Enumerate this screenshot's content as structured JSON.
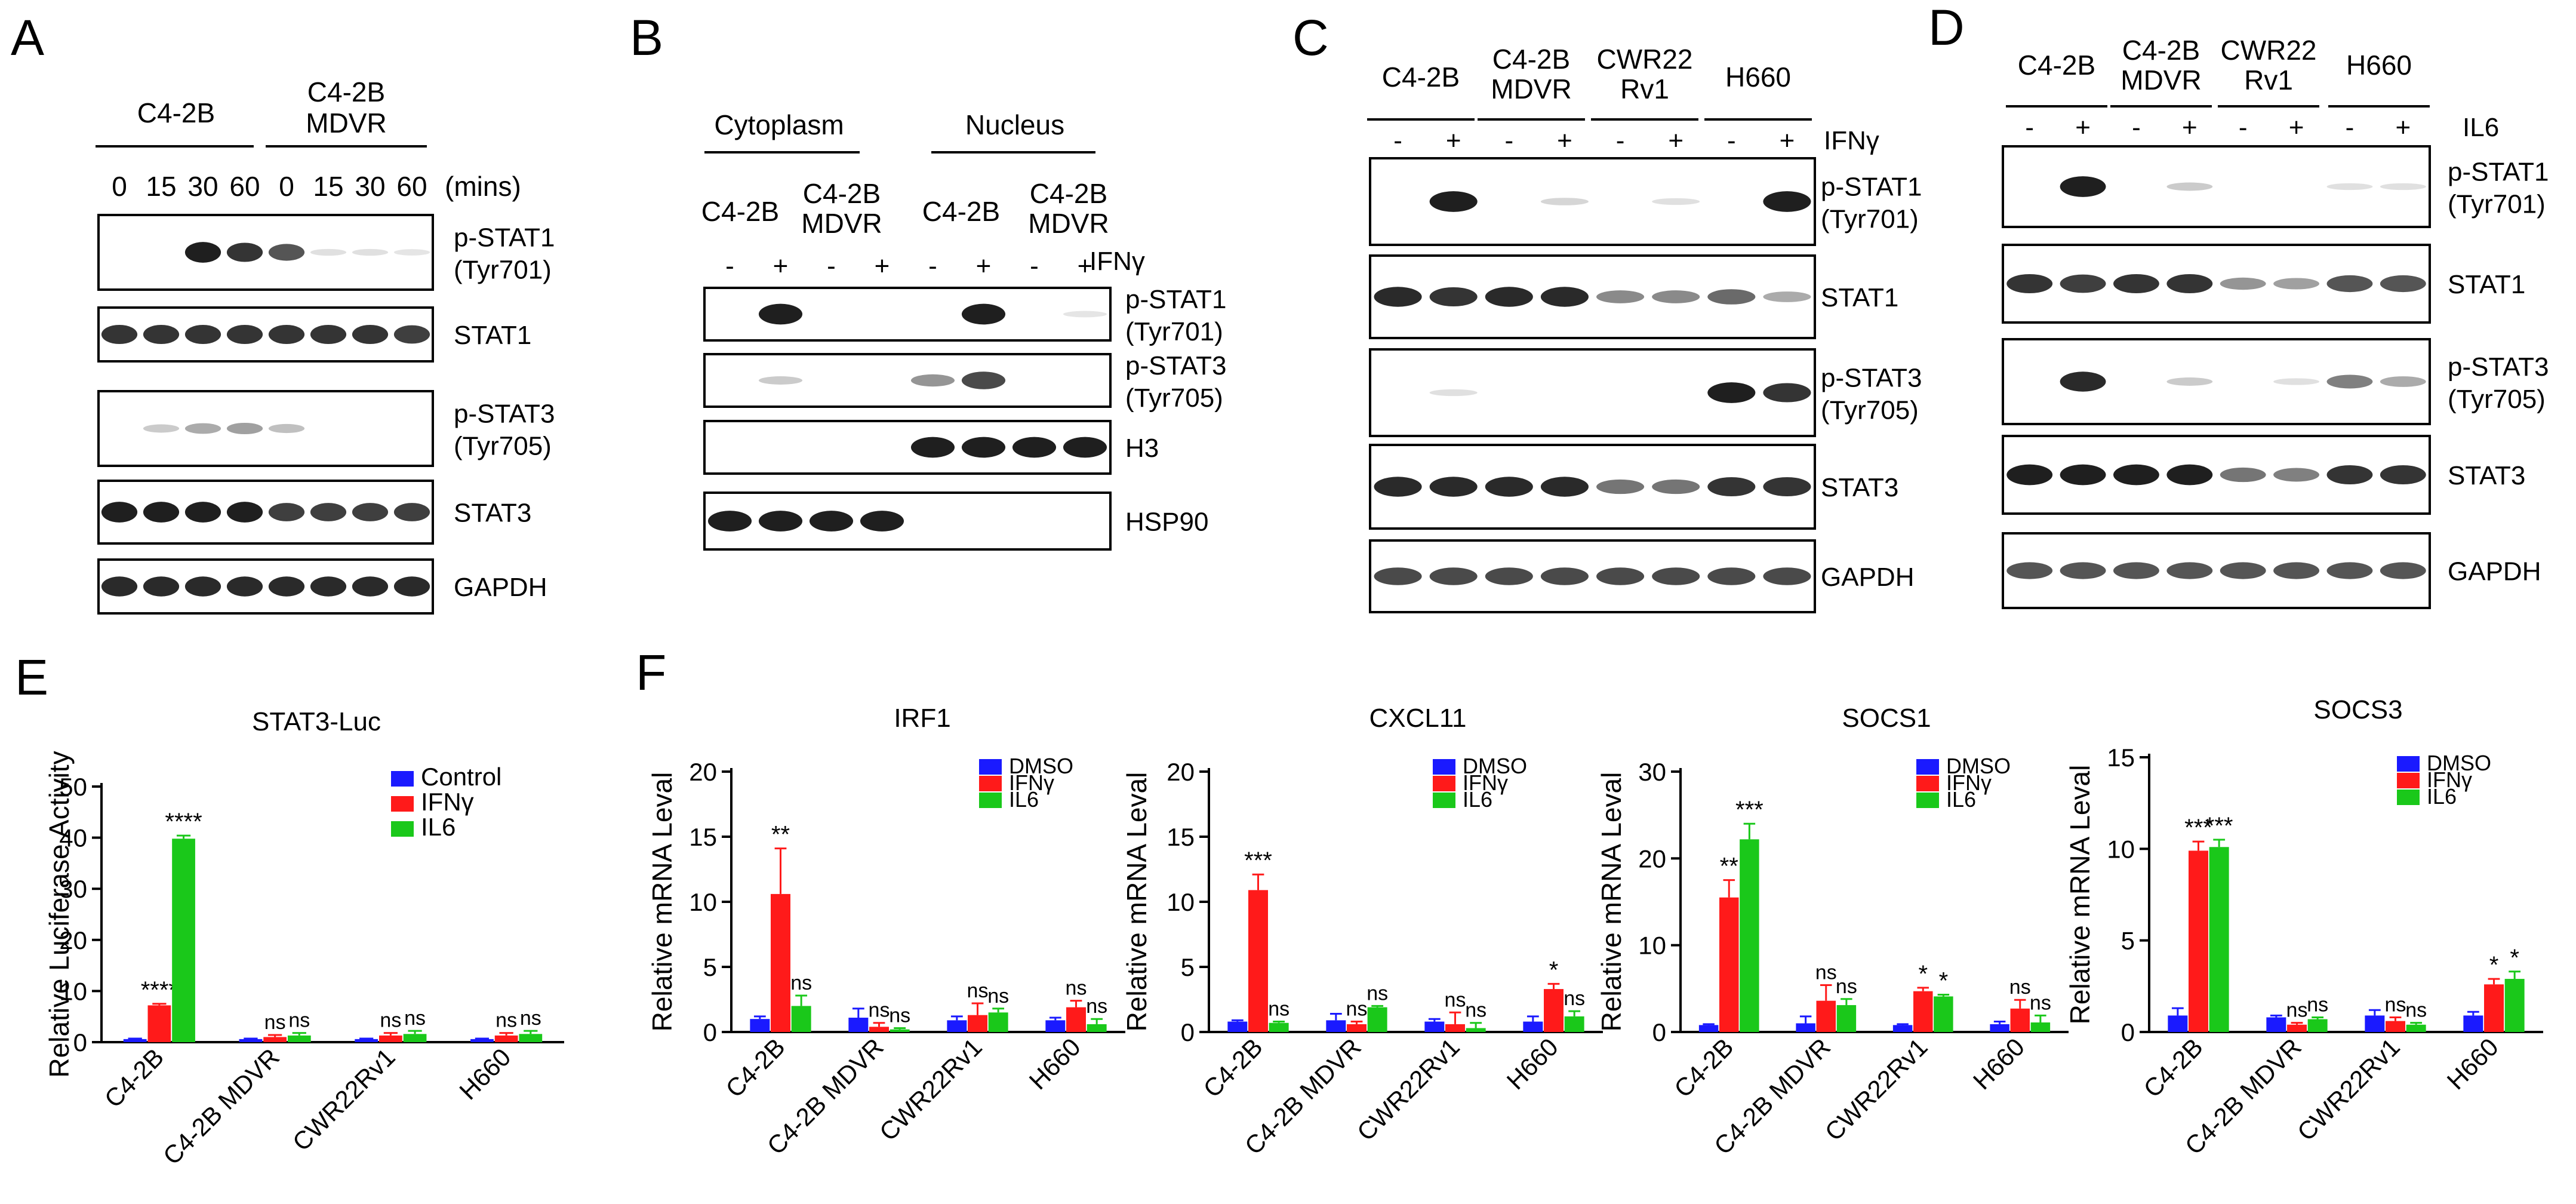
{
  "figure": {
    "panel_labels": [
      "A",
      "B",
      "C",
      "D",
      "E",
      "F"
    ]
  },
  "blot_A": {
    "group1": "C4-2B",
    "group2": [
      "C4-2B",
      "MDVR"
    ],
    "times": [
      "0",
      "15",
      "30",
      "60",
      "0",
      "15",
      "30",
      "60"
    ],
    "unit": "(mins)",
    "rows": [
      [
        "p-STAT1",
        "(Tyr701)"
      ],
      [
        "STAT1"
      ],
      [
        "p-STAT3",
        "(Tyr705)"
      ],
      [
        "STAT3"
      ],
      [
        "GAPDH"
      ]
    ]
  },
  "blot_B": {
    "fractions": [
      "Cytoplasm",
      "Nucleus"
    ],
    "groups": [
      [
        "C4-2B"
      ],
      [
        "C4-2B",
        "MDVR"
      ],
      [
        "C4-2B"
      ],
      [
        "C4-2B",
        "MDVR"
      ]
    ],
    "signs": [
      "-",
      "+",
      "-",
      "+",
      "-",
      "+",
      "-",
      "+"
    ],
    "treatment": "IFNγ",
    "rows": [
      [
        "p-STAT1",
        "(Tyr701)"
      ],
      [
        "p-STAT3",
        "(Tyr705)"
      ],
      [
        "H3"
      ],
      [
        "HSP90"
      ]
    ]
  },
  "blot_C": {
    "groups": [
      [
        "C4-2B"
      ],
      [
        "C4-2B",
        "MDVR"
      ],
      [
        "CWR22",
        "Rv1"
      ],
      [
        "H660"
      ]
    ],
    "signs": [
      "-",
      "+",
      "-",
      "+",
      "-",
      "+",
      "-",
      "+"
    ],
    "treatment": "IFNγ",
    "rows": [
      [
        "p-STAT1",
        "(Tyr701)"
      ],
      [
        "STAT1"
      ],
      [
        "p-STAT3",
        "(Tyr705)"
      ],
      [
        "STAT3"
      ],
      [
        "GAPDH"
      ]
    ]
  },
  "blot_D": {
    "groups": [
      [
        "C4-2B"
      ],
      [
        "C4-2B",
        "MDVR"
      ],
      [
        "CWR22",
        "Rv1"
      ],
      [
        "H660"
      ]
    ],
    "signs": [
      "-",
      "+",
      "-",
      "+",
      "-",
      "+",
      "-",
      "+"
    ],
    "treatment": "IL6",
    "rows": [
      [
        "p-STAT1",
        "(Tyr701)"
      ],
      [
        "STAT1"
      ],
      [
        "p-STAT3",
        "(Tyr705)"
      ],
      [
        "STAT3"
      ],
      [
        "GAPDH"
      ]
    ]
  },
  "chart_data": [
    {
      "panel": "E",
      "type": "bar",
      "title": "STAT3-Luc",
      "xlabel": "",
      "ylabel": "Relative Luciferase Activity",
      "ylim": [
        0,
        50
      ],
      "yticks": [
        0,
        10,
        20,
        30,
        40,
        50
      ],
      "categories": [
        "C4-2B",
        "C4-2B MDVR",
        "CWR22Rv1",
        "H660"
      ],
      "legend_position": "top-right",
      "series": [
        {
          "name": "Control",
          "color": "#1a1aff",
          "values": [
            0.6,
            0.6,
            0.6,
            0.6
          ],
          "errors": [
            0.1,
            0.1,
            0.1,
            0.1
          ]
        },
        {
          "name": "IFNγ",
          "color": "#ff1a1a",
          "values": [
            7.2,
            1.0,
            1.3,
            1.3
          ],
          "errors": [
            0.3,
            0.4,
            0.5,
            0.5
          ]
        },
        {
          "name": "IL6",
          "color": "#1ac81a",
          "values": [
            39.8,
            1.3,
            1.6,
            1.6
          ],
          "errors": [
            0.6,
            0.5,
            0.6,
            0.6
          ]
        }
      ],
      "annotations": [
        [
          "",
          "****",
          "****"
        ],
        [
          "",
          "ns",
          "ns"
        ],
        [
          "",
          "ns",
          "ns"
        ],
        [
          "",
          "ns",
          "ns"
        ]
      ]
    },
    {
      "panel": "F",
      "type": "bar",
      "title": "IRF1",
      "xlabel": "",
      "ylabel": "Relative mRNA Leval",
      "ylim": [
        0,
        20
      ],
      "yticks": [
        0,
        5,
        10,
        15,
        20
      ],
      "categories": [
        "C4-2B",
        "C4-2B MDVR",
        "CWR22Rv1",
        "H660"
      ],
      "legend_position": "top-right",
      "series": [
        {
          "name": "DMSO",
          "color": "#1a1aff",
          "values": [
            1.0,
            1.1,
            0.9,
            0.9
          ],
          "errors": [
            0.2,
            0.7,
            0.3,
            0.2
          ]
        },
        {
          "name": "IFNγ",
          "color": "#ff1a1a",
          "values": [
            10.6,
            0.4,
            1.3,
            1.9
          ],
          "errors": [
            3.5,
            0.3,
            0.9,
            0.5
          ]
        },
        {
          "name": "IL6",
          "color": "#1ac81a",
          "values": [
            2.0,
            0.2,
            1.5,
            0.6
          ],
          "errors": [
            0.8,
            0.1,
            0.3,
            0.4
          ]
        }
      ],
      "annotations": [
        [
          "",
          "**",
          "ns"
        ],
        [
          "",
          "ns",
          "ns"
        ],
        [
          "",
          "ns",
          "ns"
        ],
        [
          "",
          "ns",
          "ns"
        ]
      ]
    },
    {
      "panel": "F",
      "type": "bar",
      "title": "CXCL11",
      "xlabel": "",
      "ylabel": "Relative mRNA Leval",
      "ylim": [
        0,
        20
      ],
      "yticks": [
        0,
        5,
        10,
        15,
        20
      ],
      "categories": [
        "C4-2B",
        "C4-2B MDVR",
        "CWR22Rv1",
        "H660"
      ],
      "legend_position": "top-right",
      "series": [
        {
          "name": "DMSO",
          "color": "#1a1aff",
          "values": [
            0.8,
            0.9,
            0.8,
            0.8
          ],
          "errors": [
            0.1,
            0.5,
            0.2,
            0.4
          ]
        },
        {
          "name": "IFNγ",
          "color": "#ff1a1a",
          "values": [
            10.9,
            0.6,
            0.6,
            3.3
          ],
          "errors": [
            1.2,
            0.2,
            0.9,
            0.4
          ]
        },
        {
          "name": "IL6",
          "color": "#1ac81a",
          "values": [
            0.7,
            1.9,
            0.3,
            1.2
          ],
          "errors": [
            0.1,
            0.1,
            0.4,
            0.4
          ]
        }
      ],
      "annotations": [
        [
          "",
          "***",
          "ns"
        ],
        [
          "",
          "ns",
          "ns"
        ],
        [
          "",
          "ns",
          "ns"
        ],
        [
          "",
          "*",
          "ns"
        ]
      ]
    },
    {
      "panel": "F",
      "type": "bar",
      "title": "SOCS1",
      "xlabel": "",
      "ylabel": "Relative mRNA Leval",
      "ylim": [
        0,
        30
      ],
      "yticks": [
        0,
        10,
        20,
        30
      ],
      "categories": [
        "C4-2B",
        "C4-2B MDVR",
        "CWR22Rv1",
        "H660"
      ],
      "legend_position": "top-right",
      "series": [
        {
          "name": "DMSO",
          "color": "#1a1aff",
          "values": [
            0.8,
            1.0,
            0.8,
            0.9
          ],
          "errors": [
            0.1,
            0.8,
            0.1,
            0.3
          ]
        },
        {
          "name": "IFNγ",
          "color": "#ff1a1a",
          "values": [
            15.5,
            3.6,
            4.7,
            2.7
          ],
          "errors": [
            2.0,
            1.8,
            0.4,
            1.0
          ]
        },
        {
          "name": "IL6",
          "color": "#1ac81a",
          "values": [
            22.2,
            3.1,
            4.1,
            1.1
          ],
          "errors": [
            1.8,
            0.7,
            0.2,
            0.8
          ]
        }
      ],
      "annotations": [
        [
          "",
          "**",
          "***"
        ],
        [
          "",
          "ns",
          "ns"
        ],
        [
          "",
          "*",
          "*"
        ],
        [
          "",
          "ns",
          "ns"
        ]
      ]
    },
    {
      "panel": "F",
      "type": "bar",
      "title": "SOCS3",
      "xlabel": "",
      "ylabel": "Relative mRNA Leval",
      "ylim": [
        0,
        15
      ],
      "yticks": [
        0,
        5,
        10,
        15
      ],
      "categories": [
        "C4-2B",
        "C4-2B MDVR",
        "CWR22Rv1",
        "H660"
      ],
      "legend_position": "top-right",
      "series": [
        {
          "name": "DMSO",
          "color": "#1a1aff",
          "values": [
            0.9,
            0.8,
            0.9,
            0.9
          ],
          "errors": [
            0.4,
            0.1,
            0.3,
            0.2
          ]
        },
        {
          "name": "IFNγ",
          "color": "#ff1a1a",
          "values": [
            9.9,
            0.4,
            0.6,
            2.6
          ],
          "errors": [
            0.5,
            0.1,
            0.2,
            0.3
          ]
        },
        {
          "name": "IL6",
          "color": "#1ac81a",
          "values": [
            10.1,
            0.7,
            0.4,
            2.9
          ],
          "errors": [
            0.4,
            0.1,
            0.1,
            0.4
          ]
        }
      ],
      "annotations": [
        [
          "",
          "***",
          "***"
        ],
        [
          "",
          "ns",
          "ns"
        ],
        [
          "",
          "ns",
          "ns"
        ],
        [
          "",
          "*",
          "*"
        ]
      ]
    }
  ]
}
